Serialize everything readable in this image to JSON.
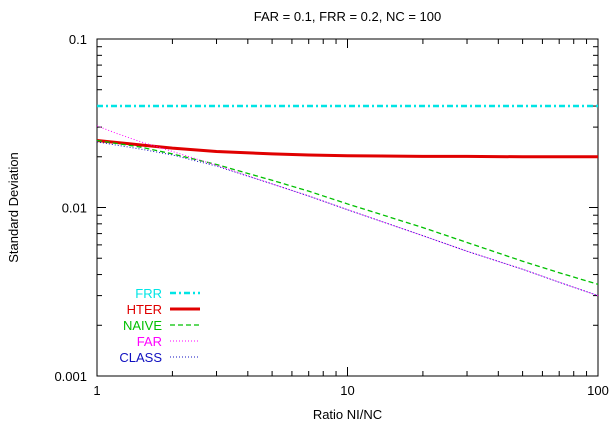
{
  "chart_data": {
    "type": "line",
    "title": "FAR = 0.1, FRR = 0.2, NC = 100",
    "xlabel": "Ratio NI/NC",
    "ylabel": "Standard Deviation",
    "x_scale": "log",
    "y_scale": "log",
    "xlim": [
      1,
      100
    ],
    "ylim": [
      0.001,
      0.1
    ],
    "x_ticks": [
      {
        "value": 1,
        "label": "1"
      },
      {
        "value": 10,
        "label": "10"
      },
      {
        "value": 100,
        "label": "100"
      }
    ],
    "y_ticks": [
      {
        "value": 0.001,
        "label": "0.001"
      },
      {
        "value": 0.01,
        "label": "0.01"
      },
      {
        "value": 0.1,
        "label": "0.1"
      }
    ],
    "grid": false,
    "legend_position": "bottom-left",
    "series": [
      {
        "name": "FRR",
        "color": "#00e5e5",
        "dash": "dash-dot",
        "x": [
          1,
          2,
          5,
          10,
          20,
          50,
          100
        ],
        "y": [
          0.04,
          0.04,
          0.04,
          0.04,
          0.04,
          0.04,
          0.04
        ]
      },
      {
        "name": "HTER",
        "color": "#e00000",
        "dash": "solid",
        "x": [
          1,
          1.5,
          2,
          3,
          5,
          7,
          10,
          20,
          30,
          50,
          70,
          100
        ],
        "y": [
          0.025,
          0.0235,
          0.0225,
          0.0215,
          0.0208,
          0.0205,
          0.0203,
          0.0201,
          0.0201,
          0.02,
          0.02,
          0.02
        ]
      },
      {
        "name": "NAIVE",
        "color": "#00c000",
        "dash": "dashed",
        "x": [
          1,
          1.5,
          2,
          3,
          5,
          7,
          10,
          20,
          30,
          50,
          70,
          100
        ],
        "y": [
          0.025,
          0.0228,
          0.0208,
          0.018,
          0.0145,
          0.0125,
          0.0105,
          0.0076,
          0.0062,
          0.0048,
          0.0041,
          0.0035
        ]
      },
      {
        "name": "FAR",
        "color": "#ff00ff",
        "dash": "dotted",
        "x": [
          1,
          1.2,
          1.5,
          2,
          3,
          5,
          7,
          10,
          20,
          30,
          50,
          70,
          100
        ],
        "y": [
          0.0305,
          0.0275,
          0.0245,
          0.0215,
          0.0178,
          0.0138,
          0.0117,
          0.0097,
          0.0068,
          0.0055,
          0.0043,
          0.0036,
          0.003
        ]
      },
      {
        "name": "CLASS",
        "color": "#1010c0",
        "dash": "dotted",
        "x": [
          1,
          1.5,
          2,
          3,
          5,
          7,
          10,
          20,
          30,
          50,
          70,
          100
        ],
        "y": [
          0.0245,
          0.0222,
          0.0205,
          0.0176,
          0.0138,
          0.0117,
          0.0097,
          0.0068,
          0.0055,
          0.0043,
          0.0036,
          0.003
        ]
      }
    ]
  }
}
